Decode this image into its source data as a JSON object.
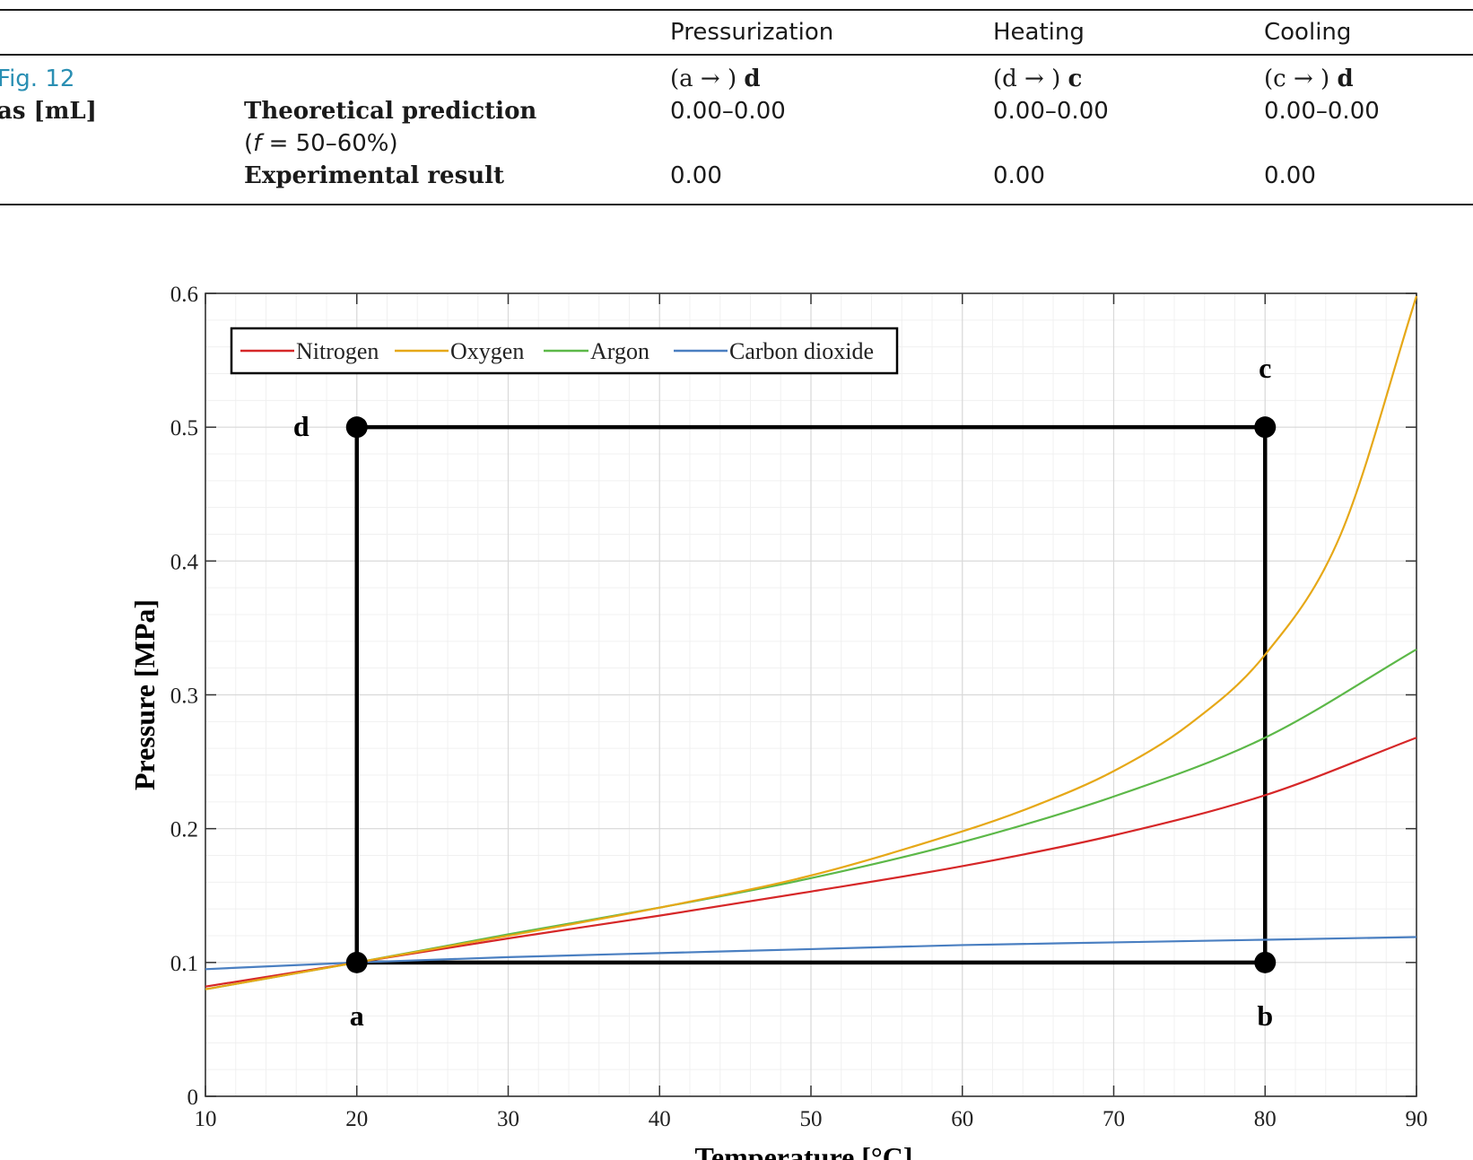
{
  "table": {
    "columns": [
      "Pressurization",
      "Heating",
      "Cooling"
    ],
    "fig_ref": "Fig. 12",
    "row_label": "as [mL]",
    "transitions": [
      {
        "open": "(a → )",
        "bold": "d"
      },
      {
        "open": "(d → )",
        "bold": "c"
      },
      {
        "open": "(c → )",
        "bold": "d"
      }
    ],
    "theoretical_label": "Theoretical prediction",
    "theoretical_note_prefix": "(",
    "theoretical_note_f": "f",
    "theoretical_note_rest": " = 50–60%)",
    "theoretical_values": [
      "0.00–0.00",
      "0.00–0.00",
      "0.00–0.00"
    ],
    "experimental_label": "Experimental result",
    "experimental_values": [
      "0.00",
      "0.00",
      "0.00"
    ]
  },
  "chart_data": {
    "type": "line",
    "xlabel": "Temperature [°C]",
    "ylabel": "Pressure [MPa]",
    "xlim": [
      10,
      90
    ],
    "ylim": [
      0,
      0.6
    ],
    "xticks": [
      "10",
      "20",
      "30",
      "40",
      "50",
      "60",
      "70",
      "80",
      "90"
    ],
    "yticks": [
      "0",
      "0.1",
      "0.2",
      "0.3",
      "0.4",
      "0.5",
      "0.6"
    ],
    "grid": true,
    "minor_grid": true,
    "legend_position": "top-left",
    "series": [
      {
        "name": "Nitrogen",
        "color": "#d62728",
        "x": [
          10,
          20,
          30,
          40,
          50,
          60,
          70,
          80,
          90
        ],
        "y": [
          0.082,
          0.1,
          0.118,
          0.135,
          0.153,
          0.172,
          0.195,
          0.225,
          0.268
        ]
      },
      {
        "name": "Oxygen",
        "color": "#e6a817",
        "x": [
          10,
          20,
          30,
          40,
          50,
          60,
          65,
          70,
          75,
          80,
          85,
          90
        ],
        "y": [
          0.08,
          0.1,
          0.12,
          0.141,
          0.165,
          0.198,
          0.218,
          0.243,
          0.278,
          0.33,
          0.42,
          0.598
        ]
      },
      {
        "name": "Argon",
        "color": "#5cb848",
        "x": [
          10,
          20,
          30,
          40,
          50,
          60,
          70,
          80,
          90
        ],
        "y": [
          0.08,
          0.1,
          0.121,
          0.141,
          0.163,
          0.19,
          0.224,
          0.268,
          0.334
        ]
      },
      {
        "name": "Carbon dioxide",
        "color": "#4a7fc1",
        "x": [
          10,
          20,
          30,
          40,
          50,
          60,
          70,
          80,
          90
        ],
        "y": [
          0.095,
          0.1,
          0.104,
          0.107,
          0.11,
          0.113,
          0.115,
          0.117,
          0.119
        ]
      }
    ],
    "cycle": {
      "points": [
        {
          "label": "a",
          "x": 20,
          "y": 0.1
        },
        {
          "label": "b",
          "x": 80,
          "y": 0.1
        },
        {
          "label": "c",
          "x": 80,
          "y": 0.5
        },
        {
          "label": "d",
          "x": 20,
          "y": 0.5
        }
      ]
    }
  }
}
